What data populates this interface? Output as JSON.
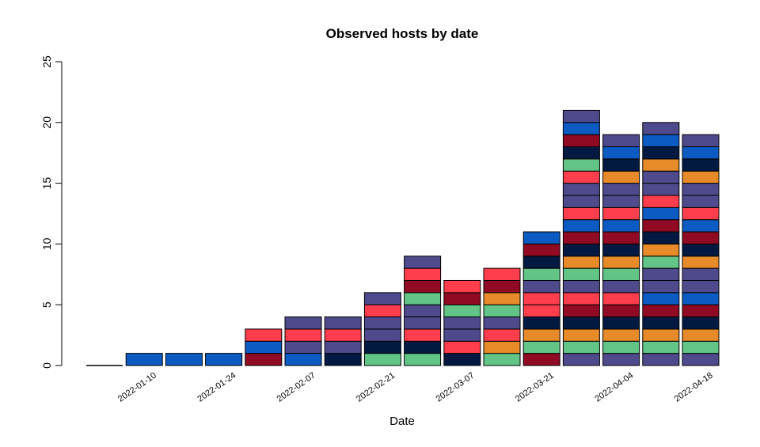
{
  "chart_data": {
    "type": "bar",
    "stacked": true,
    "title": "Observed hosts by date",
    "xlabel": "Date",
    "ylabel": "",
    "ylim": [
      0,
      25
    ],
    "y_ticks": [
      "0",
      "5",
      "10",
      "15",
      "20",
      "25"
    ],
    "grid": false,
    "x_tick_labels": [
      {
        "bar": 1,
        "label": "2022-01-10"
      },
      {
        "bar": 3,
        "label": "2022-01-24"
      },
      {
        "bar": 5,
        "label": "2022-02-07"
      },
      {
        "bar": 7,
        "label": "2022-02-21"
      },
      {
        "bar": 9,
        "label": "2022-03-07"
      },
      {
        "bar": 11,
        "label": "2022-03-21"
      },
      {
        "bar": 13,
        "label": "2022-04-04"
      },
      {
        "bar": 15,
        "label": "2022-04-18"
      }
    ],
    "values": [
      0,
      1,
      1,
      1,
      3,
      4,
      4,
      6,
      9,
      7,
      8,
      11,
      21,
      19,
      20,
      19
    ],
    "segment_colors": {
      "P": "#4F4A8C",
      "B": "#0C5BC2",
      "D": "#8F0A22",
      "N": "#021A42",
      "G": "#62C487",
      "R": "#FF3E4D",
      "O": "#E78A29"
    },
    "stacks_bottom_up": [
      [],
      [
        "B"
      ],
      [
        "B"
      ],
      [
        "B"
      ],
      [
        "D",
        "B",
        "R"
      ],
      [
        "B",
        "P",
        "R",
        "P"
      ],
      [
        "N",
        "P",
        "R",
        "P"
      ],
      [
        "G",
        "N",
        "P",
        "P",
        "R",
        "P"
      ],
      [
        "G",
        "N",
        "R",
        "P",
        "P",
        "G",
        "D",
        "R",
        "P"
      ],
      [
        "N",
        "R",
        "P",
        "P",
        "G",
        "D",
        "R"
      ],
      [
        "G",
        "O",
        "R",
        "P",
        "G",
        "O",
        "D",
        "R"
      ],
      [
        "D",
        "G",
        "O",
        "N",
        "R",
        "R",
        "P",
        "G",
        "N",
        "D",
        "B"
      ],
      [
        "P",
        "G",
        "O",
        "N",
        "D",
        "R",
        "P",
        "G",
        "O",
        "N",
        "D",
        "B",
        "R",
        "P",
        "P",
        "R",
        "G",
        "N",
        "D",
        "B",
        "P"
      ],
      [
        "P",
        "G",
        "O",
        "N",
        "D",
        "R",
        "P",
        "G",
        "O",
        "N",
        "D",
        "B",
        "R",
        "P",
        "P",
        "O",
        "N",
        "B",
        "P"
      ],
      [
        "P",
        "G",
        "O",
        "N",
        "D",
        "B",
        "P",
        "P",
        "G",
        "O",
        "N",
        "D",
        "B",
        "R",
        "P",
        "P",
        "O",
        "N",
        "B",
        "P"
      ],
      [
        "P",
        "G",
        "O",
        "N",
        "D",
        "B",
        "P",
        "P",
        "O",
        "N",
        "D",
        "B",
        "R",
        "P",
        "P",
        "O",
        "N",
        "B",
        "P"
      ]
    ]
  }
}
